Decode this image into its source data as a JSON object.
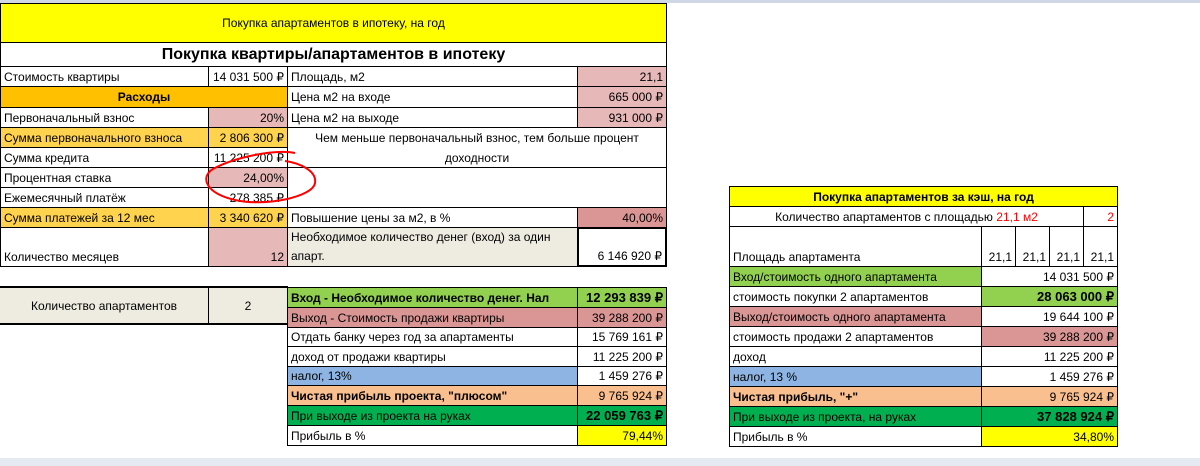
{
  "mortgage": {
    "title": "Покупка апартаментов в ипотеку, на год",
    "subtitle": "Покупка квартиры/апартаментов в ипотеку",
    "price_label": "Стоимость квартиры",
    "price": "14 031 500 ₽",
    "expenses": "Расходы",
    "down_pct_label": "Первоначальный взнос",
    "down_pct": "20%",
    "down_sum_label": "Сумма первоначального взноса",
    "down_sum": "2 806 300 ₽",
    "loan_label": "Сумма кредита",
    "loan": "11 225 200 ₽",
    "rate_label": "Процентная ставка",
    "rate": "24,00%",
    "monthly_label": "Ежемесячный платёж",
    "monthly": "278 385 ₽",
    "payments_label": "Сумма платежей за 12 мес",
    "payments": "3 340 620 ₽",
    "months_label": "Количество месяцев",
    "months": "12",
    "area_label": "Площадь, м2",
    "area": "21,1",
    "entry_price_label": "Цена м2 на входе",
    "entry_price": "665 000 ₽",
    "exit_price_label": "Цена м2 на выходе",
    "exit_price": "931 000 ₽",
    "note": "Чем меньше первоначальный взнос, тем больше процент доходности",
    "growth_label": "Повышение цены за м2, в %",
    "growth": "40,00%",
    "need_label": "Необходимое количество денег (вход) за один апарт.",
    "need": "6 146 920 ₽",
    "count_label": "Количество апартаментов",
    "count": "2",
    "results": [
      {
        "label": "Вход - Необходимое количество денег. Нал",
        "value": "12 293 839 ₽"
      },
      {
        "label": "Выход - Стоимость продажи квартиры",
        "value": "39 288 200 ₽"
      },
      {
        "label": "Отдать банку через год за апартаменты",
        "value": "15 769 161 ₽"
      },
      {
        "label": "доход от продажи квартиры",
        "value": "11 225 200 ₽"
      },
      {
        "label": "налог, 13%",
        "value": "1 459 276 ₽"
      },
      {
        "label": "Чистая прибыль проекта, \"плюсом\"",
        "value": "9 765 924 ₽"
      },
      {
        "label": "При выходе из проекта на руках",
        "value": "22 059 763 ₽"
      },
      {
        "label": "Прибыль в %",
        "value": "79,44%"
      }
    ]
  },
  "cash": {
    "title": "Покупка апартаментов за кэш, на год",
    "count_label": "Количество апартаментов с площадью",
    "count_area": "21,1 м2",
    "count": "2",
    "area_label": "Площадь апартамента",
    "areas": [
      "21,1",
      "21,1",
      "21,1",
      "21,1"
    ],
    "rows": [
      {
        "label": "Вход/стоимость одного апартамента",
        "value": "14 031 500 ₽"
      },
      {
        "label": "стоимость покупки 2 апартаментов",
        "value": "28 063 000 ₽"
      },
      {
        "label": "Выход/стоимость одного апартамента",
        "value": "19 644 100 ₽"
      },
      {
        "label": "стоимость продажи 2 апартаментов",
        "value": "39 288 200 ₽"
      },
      {
        "label": "доход",
        "value": "11 225 200 ₽"
      },
      {
        "label": "налог, 13 %",
        "value": "1 459 276 ₽"
      },
      {
        "label": "Чистая прибыль, \"+\"",
        "value": "9 765 924 ₽"
      },
      {
        "label": "При выходе из проекта, на руках",
        "value": "37 828 924 ₽"
      },
      {
        "label": "Прибыль в %",
        "value": "34,80%"
      }
    ]
  },
  "colors": {
    "title": "#ffff00",
    "expenses": "#ffc000",
    "input": "#e6b8b7",
    "entry": "#92d050",
    "exit": "#da9694",
    "tax": "#8db4e2",
    "profit": "#fabf8f",
    "final": "#00b050",
    "annotation": "#ff0000"
  }
}
